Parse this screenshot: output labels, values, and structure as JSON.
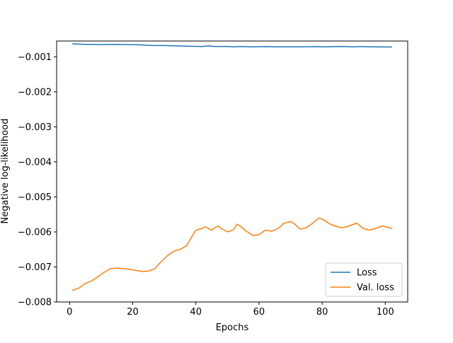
{
  "chart_data": {
    "type": "line",
    "title": "",
    "xlabel": "Epochs",
    "ylabel": "Negative log-likelihood",
    "xlim": [
      -4.1,
      107.1
    ],
    "ylim": [
      -0.008,
      -0.00055
    ],
    "xticks": [
      0,
      20,
      40,
      60,
      80,
      100
    ],
    "xtick_labels": [
      "0",
      "20",
      "40",
      "60",
      "80",
      "100"
    ],
    "yticks": [
      -0.008,
      -0.007,
      -0.006,
      -0.005,
      -0.004,
      -0.003,
      -0.002,
      -0.001
    ],
    "ytick_labels": [
      "−0.008",
      "−0.007",
      "−0.006",
      "−0.005",
      "−0.004",
      "−0.003",
      "−0.002",
      "−0.001"
    ],
    "grid": false,
    "legend_position": "lower-right",
    "series": [
      {
        "name": "Loss",
        "color": "#1f77b4",
        "x": [
          1,
          5,
          10,
          14,
          18,
          22,
          26,
          30,
          34,
          38,
          42,
          44,
          46,
          50,
          52,
          54,
          58,
          62,
          66,
          70,
          74,
          78,
          80,
          84,
          86,
          90,
          92,
          96,
          100,
          102
        ],
        "y": [
          -0.00063,
          -0.000645,
          -0.00065,
          -0.000645,
          -0.00065,
          -0.00066,
          -0.000675,
          -0.00068,
          -0.00069,
          -0.0007,
          -0.000705,
          -0.00069,
          -0.000705,
          -0.000705,
          -0.000715,
          -0.000705,
          -0.000715,
          -0.00071,
          -0.000715,
          -0.000715,
          -0.000715,
          -0.00071,
          -0.000715,
          -0.00071,
          -0.000705,
          -0.000715,
          -0.00071,
          -0.000715,
          -0.00072,
          -0.00072
        ]
      },
      {
        "name": "Val. loss",
        "color": "#ff7f0e",
        "x": [
          1,
          3,
          5,
          7,
          9,
          11,
          13,
          15,
          17,
          19,
          21,
          23,
          25,
          27,
          29,
          31,
          33,
          35,
          37,
          39,
          40,
          42,
          43,
          44,
          45,
          46,
          47,
          48,
          50,
          51,
          52,
          53,
          54,
          56,
          58,
          60,
          62,
          64,
          66,
          68,
          70,
          71,
          73,
          75,
          77,
          79,
          81,
          82,
          83,
          84,
          86,
          88,
          90,
          91,
          93,
          95,
          97,
          99,
          100,
          102
        ],
        "y": [
          -0.00767,
          -0.0076,
          -0.00747,
          -0.0074,
          -0.00728,
          -0.00715,
          -0.00705,
          -0.00703,
          -0.00705,
          -0.00707,
          -0.0071,
          -0.00713,
          -0.00712,
          -0.00705,
          -0.00685,
          -0.00668,
          -0.00655,
          -0.0065,
          -0.0064,
          -0.0061,
          -0.00595,
          -0.0059,
          -0.00585,
          -0.0059,
          -0.00595,
          -0.00588,
          -0.00583,
          -0.0059,
          -0.006,
          -0.00597,
          -0.00593,
          -0.00578,
          -0.00583,
          -0.00598,
          -0.0061,
          -0.00608,
          -0.00595,
          -0.00598,
          -0.0059,
          -0.00575,
          -0.0057,
          -0.00575,
          -0.00592,
          -0.00588,
          -0.00575,
          -0.0056,
          -0.00568,
          -0.00575,
          -0.0058,
          -0.00583,
          -0.00588,
          -0.00585,
          -0.00578,
          -0.00575,
          -0.0059,
          -0.00595,
          -0.0059,
          -0.00583,
          -0.00585,
          -0.0059
        ]
      }
    ]
  }
}
